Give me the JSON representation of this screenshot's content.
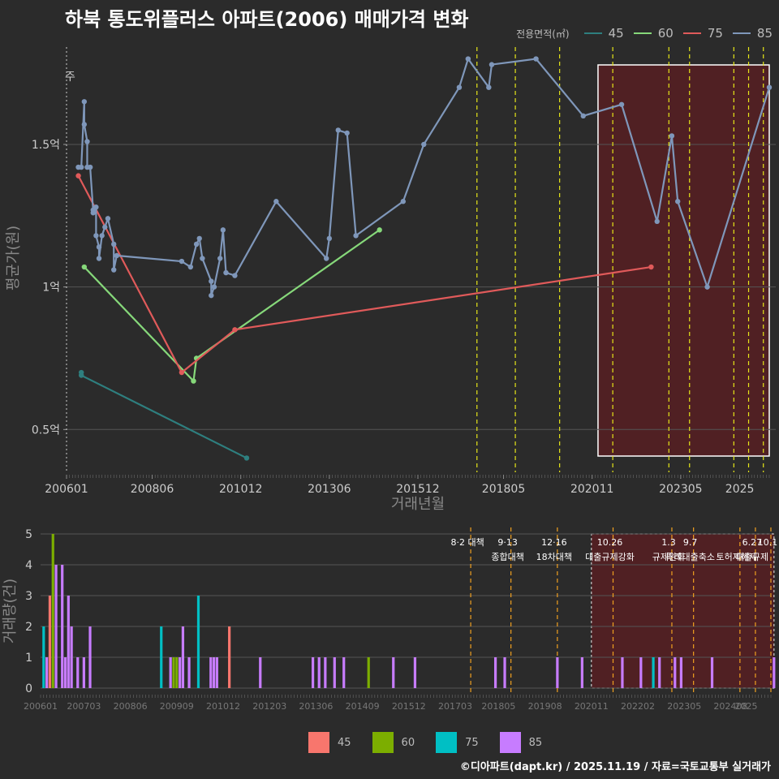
{
  "title": "하북 통도위플러스 아파트(2006) 매매가격 변화",
  "footer": "©디아파트(dapt.kr) / 2025.11.19 / 자료=국토교통부 실거래가",
  "legend_title": "전용면적(㎡)",
  "colors": {
    "line": {
      "45": "#2e7f7f",
      "60": "#86d87a",
      "75": "#e05a5a",
      "85": "#7f97ba"
    },
    "bar": {
      "45": "#f8766d",
      "60": "#7cae00",
      "75": "#00bfc4",
      "85": "#c77cff"
    },
    "highlight": "#5a1e22",
    "policy_line": "#e6e619"
  },
  "chart_data": [
    {
      "type": "line",
      "title": "하북 통도위플러스 아파트(2006) 매매가격 변화",
      "xlabel": "거래년월",
      "ylabel": "평균가(원)",
      "x_ticks": [
        "200601",
        "200806",
        "201012",
        "201306",
        "201512",
        "201805",
        "202011",
        "202305",
        "2025"
      ],
      "y_ticks": [
        "0.5억",
        "1억",
        "1.5억"
      ],
      "ylim": [
        0.35,
        1.85
      ],
      "highlight_range": [
        "202101",
        "202511"
      ],
      "top_left_label": "주",
      "series": [
        {
          "name": "45",
          "points": [
            [
              "200606",
              0.7
            ],
            [
              "200606",
              0.69
            ],
            [
              "201102",
              0.4
            ]
          ]
        },
        {
          "name": "60",
          "points": [
            [
              "200607",
              1.07
            ],
            [
              "200908",
              0.67
            ],
            [
              "200909",
              0.75
            ],
            [
              "201411",
              1.2
            ]
          ]
        },
        {
          "name": "75",
          "points": [
            [
              "200605",
              1.39
            ],
            [
              "200904",
              0.7
            ],
            [
              "201010",
              0.85
            ],
            [
              "202207",
              1.07
            ]
          ]
        },
        {
          "name": "85",
          "points": [
            [
              "200605",
              1.42
            ],
            [
              "200606",
              1.42
            ],
            [
              "200607",
              1.65
            ],
            [
              "200607",
              1.57
            ],
            [
              "200608",
              1.51
            ],
            [
              "200608",
              1.42
            ],
            [
              "200609",
              1.42
            ],
            [
              "200610",
              1.27
            ],
            [
              "200610",
              1.26
            ],
            [
              "200611",
              1.28
            ],
            [
              "200611",
              1.18
            ],
            [
              "200612",
              1.14
            ],
            [
              "200612",
              1.1
            ],
            [
              "200701",
              1.18
            ],
            [
              "200702",
              1.21
            ],
            [
              "200703",
              1.24
            ],
            [
              "200705",
              1.15
            ],
            [
              "200705",
              1.06
            ],
            [
              "200706",
              1.11
            ],
            [
              "200904",
              1.09
            ],
            [
              "200907",
              1.07
            ],
            [
              "200909",
              1.15
            ],
            [
              "200910",
              1.17
            ],
            [
              "200911",
              1.1
            ],
            [
              "201002",
              1.02
            ],
            [
              "201002",
              0.97
            ],
            [
              "201003",
              1.0
            ],
            [
              "201005",
              1.1
            ],
            [
              "201006",
              1.2
            ],
            [
              "201007",
              1.05
            ],
            [
              "201010",
              1.04
            ],
            [
              "201112",
              1.3
            ],
            [
              "201305",
              1.1
            ],
            [
              "201306",
              1.17
            ],
            [
              "201309",
              1.55
            ],
            [
              "201312",
              1.54
            ],
            [
              "201403",
              1.18
            ],
            [
              "201507",
              1.3
            ],
            [
              "201602",
              1.5
            ],
            [
              "201702",
              1.7
            ],
            [
              "201705",
              1.8
            ],
            [
              "201712",
              1.7
            ],
            [
              "201801",
              1.78
            ],
            [
              "201904",
              1.8
            ],
            [
              "202008",
              1.6
            ],
            [
              "202109",
              1.64
            ],
            [
              "202209",
              1.23
            ],
            [
              "202302",
              1.53
            ],
            [
              "202304",
              1.3
            ],
            [
              "202402",
              1.0
            ],
            [
              "202511",
              1.7
            ]
          ]
        }
      ],
      "policy_x": [
        "201708",
        "201809",
        "201912",
        "202106",
        "202301",
        "202308",
        "202411",
        "202504",
        "202509"
      ]
    },
    {
      "type": "bar",
      "xlabel": "",
      "ylabel": "거래량(건)",
      "x_ticks": [
        "200601",
        "200703",
        "200806",
        "200909",
        "201012",
        "201203",
        "201306",
        "201409",
        "201512",
        "201703",
        "201805",
        "201908",
        "202011",
        "202202",
        "202305",
        "202408",
        "2025"
      ],
      "y_ticks": [
        "0",
        "1",
        "2",
        "3",
        "4",
        "5"
      ],
      "ylim": [
        0,
        5
      ],
      "highlight_range": [
        "202011",
        "202510"
      ],
      "bars": [
        {
          "x": "200602",
          "size": "75",
          "count": 2
        },
        {
          "x": "200603",
          "size": "85",
          "count": 1
        },
        {
          "x": "200604",
          "size": "45",
          "count": 3
        },
        {
          "x": "200605",
          "size": "60",
          "count": 5
        },
        {
          "x": "200606",
          "size": "85",
          "count": 4
        },
        {
          "x": "200608",
          "size": "85",
          "count": 4
        },
        {
          "x": "200609",
          "size": "85",
          "count": 1
        },
        {
          "x": "200610",
          "size": "85",
          "count": 3
        },
        {
          "x": "200611",
          "size": "85",
          "count": 2
        },
        {
          "x": "200701",
          "size": "85",
          "count": 1
        },
        {
          "x": "200703",
          "size": "85",
          "count": 1
        },
        {
          "x": "200705",
          "size": "85",
          "count": 2
        },
        {
          "x": "200904",
          "size": "75",
          "count": 2
        },
        {
          "x": "200907",
          "size": "85",
          "count": 1
        },
        {
          "x": "200908",
          "size": "60",
          "count": 1
        },
        {
          "x": "200909",
          "size": "60",
          "count": 1
        },
        {
          "x": "200910",
          "size": "85",
          "count": 1
        },
        {
          "x": "200911",
          "size": "85",
          "count": 2
        },
        {
          "x": "201001",
          "size": "85",
          "count": 1
        },
        {
          "x": "201004",
          "size": "75",
          "count": 3
        },
        {
          "x": "201008",
          "size": "85",
          "count": 1
        },
        {
          "x": "201009",
          "size": "85",
          "count": 1
        },
        {
          "x": "201010",
          "size": "85",
          "count": 1
        },
        {
          "x": "201102",
          "size": "45",
          "count": 2
        },
        {
          "x": "201112",
          "size": "85",
          "count": 1
        },
        {
          "x": "201305",
          "size": "85",
          "count": 1
        },
        {
          "x": "201307",
          "size": "85",
          "count": 1
        },
        {
          "x": "201309",
          "size": "85",
          "count": 1
        },
        {
          "x": "201312",
          "size": "85",
          "count": 1
        },
        {
          "x": "201403",
          "size": "85",
          "count": 1
        },
        {
          "x": "201411",
          "size": "60",
          "count": 1
        },
        {
          "x": "201507",
          "size": "85",
          "count": 1
        },
        {
          "x": "201602",
          "size": "85",
          "count": 1
        },
        {
          "x": "201804",
          "size": "85",
          "count": 1
        },
        {
          "x": "201807",
          "size": "85",
          "count": 1
        },
        {
          "x": "201912",
          "size": "85",
          "count": 1
        },
        {
          "x": "202008",
          "size": "85",
          "count": 1
        },
        {
          "x": "202109",
          "size": "85",
          "count": 1
        },
        {
          "x": "202203",
          "size": "85",
          "count": 1
        },
        {
          "x": "202207",
          "size": "75",
          "count": 1
        },
        {
          "x": "202209",
          "size": "85",
          "count": 1
        },
        {
          "x": "202302",
          "size": "85",
          "count": 1
        },
        {
          "x": "202304",
          "size": "85",
          "count": 1
        },
        {
          "x": "202402",
          "size": "85",
          "count": 1
        },
        {
          "x": "202510",
          "size": "85",
          "count": 1
        }
      ],
      "annotations": [
        {
          "x": "201708",
          "lines": [
            "8·2 대책"
          ]
        },
        {
          "x": "201809",
          "lines": [
            "9·13",
            "종합대책"
          ]
        },
        {
          "x": "201912",
          "lines": [
            "12·16",
            "18차대책"
          ]
        },
        {
          "x": "202106",
          "lines": [
            "10.26",
            "대출규제강화"
          ]
        },
        {
          "x": "202301",
          "lines": [
            "1.3",
            "규제완화"
          ]
        },
        {
          "x": "202308",
          "lines": [
            "9.7",
            "특례대출축소"
          ]
        },
        {
          "x": "202411",
          "lines": [
            "",
            "토허제해제"
          ]
        },
        {
          "x": "202504",
          "lines": [
            "6.27",
            "대출규제"
          ]
        },
        {
          "x": "202509",
          "lines": [
            "10.1",
            ""
          ]
        }
      ]
    }
  ]
}
